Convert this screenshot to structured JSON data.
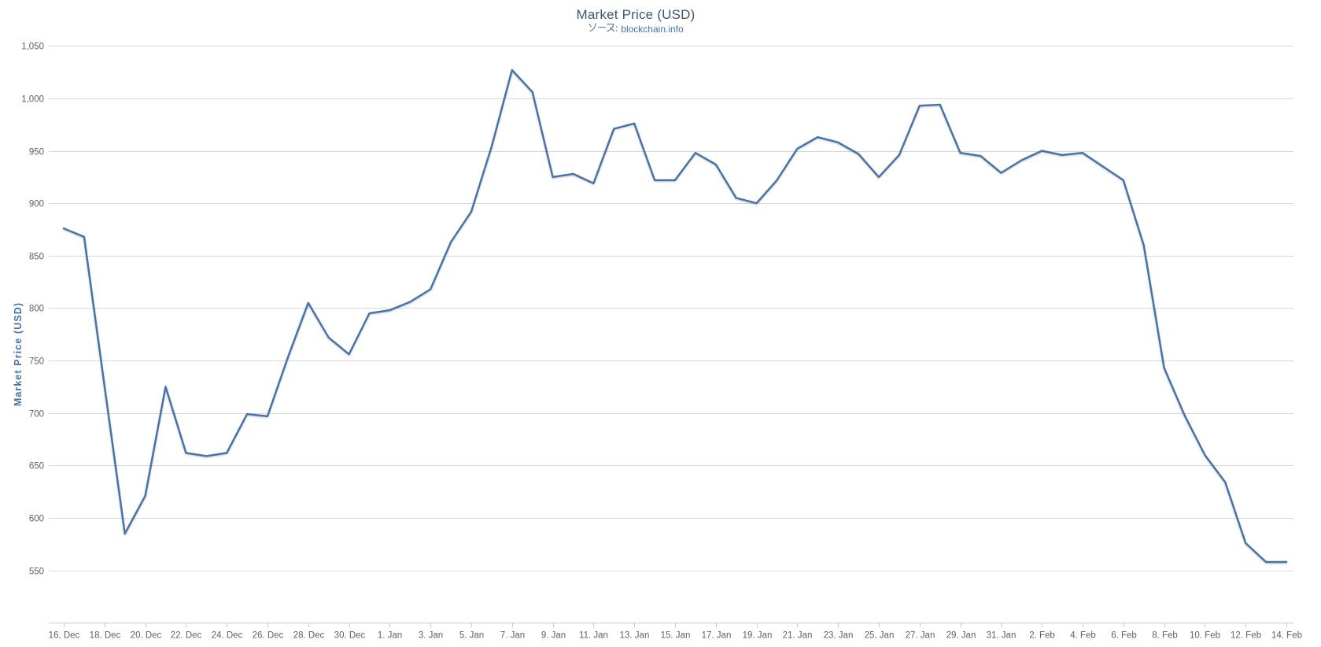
{
  "chart": {
    "title": "Market Price (USD)",
    "subtitle_prefix": "ソース:",
    "subtitle_link": "blockchain.info",
    "y_axis_title": "Market Price (USD)"
  },
  "colors": {
    "series": "#4572A7",
    "grid": "#D8D8D8",
    "axis_line": "#C0C8D2",
    "tick": "#C0C8D2",
    "axis_labels": "#606060",
    "title": "#3E576F",
    "subtitle": "#6D869F",
    "link": "#4572A7",
    "y_axis_title": "#4572A7",
    "background": "#FFFFFF"
  },
  "chart_data": {
    "type": "line",
    "title": "Market Price (USD)",
    "subtitle": "ソース: blockchain.info",
    "xlabel": "",
    "ylabel": "Market Price (USD)",
    "ylim": [
      500,
      1050
    ],
    "y_ticks": [
      550,
      600,
      650,
      700,
      750,
      800,
      850,
      900,
      950,
      1000,
      1050
    ],
    "grid": "horizontal",
    "legend": "none",
    "x_tick_labels": [
      "16. Dec",
      "18. Dec",
      "20. Dec",
      "22. Dec",
      "24. Dec",
      "26. Dec",
      "28. Dec",
      "30. Dec",
      "1. Jan",
      "3. Jan",
      "5. Jan",
      "7. Jan",
      "9. Jan",
      "11. Jan",
      "13. Jan",
      "15. Jan",
      "17. Jan",
      "19. Jan",
      "21. Jan",
      "23. Jan",
      "25. Jan",
      "27. Jan",
      "29. Jan",
      "31. Jan",
      "2. Feb",
      "4. Feb",
      "6. Feb",
      "8. Feb",
      "10. Feb",
      "12. Feb",
      "14. Feb"
    ],
    "x": [
      "16. Dec",
      "17. Dec",
      "18. Dec",
      "19. Dec",
      "20. Dec",
      "21. Dec",
      "22. Dec",
      "23. Dec",
      "24. Dec",
      "25. Dec",
      "26. Dec",
      "27. Dec",
      "28. Dec",
      "29. Dec",
      "30. Dec",
      "31. Dec",
      "1. Jan",
      "2. Jan",
      "3. Jan",
      "4. Jan",
      "5. Jan",
      "6. Jan",
      "7. Jan",
      "8. Jan",
      "9. Jan",
      "10. Jan",
      "11. Jan",
      "12. Jan",
      "13. Jan",
      "14. Jan",
      "15. Jan",
      "16. Jan",
      "17. Jan",
      "18. Jan",
      "19. Jan",
      "20. Jan",
      "21. Jan",
      "22. Jan",
      "23. Jan",
      "24. Jan",
      "25. Jan",
      "26. Jan",
      "27. Jan",
      "28. Jan",
      "29. Jan",
      "30. Jan",
      "31. Jan",
      "1. Feb",
      "2. Feb",
      "3. Feb",
      "4. Feb",
      "5. Feb",
      "6. Feb",
      "7. Feb",
      "8. Feb",
      "9. Feb",
      "10. Feb",
      "11. Feb",
      "12. Feb",
      "13. Feb",
      "14. Feb"
    ],
    "series": [
      {
        "name": "Market Price (USD)",
        "color": "#4572A7",
        "values": [
          876,
          868,
          726,
          585,
          621,
          725,
          662,
          659,
          662,
          699,
          697,
          753,
          805,
          772,
          756,
          795,
          798,
          806,
          818,
          863,
          892,
          954,
          1027,
          1006,
          925,
          928,
          919,
          971,
          976,
          922,
          922,
          948,
          937,
          905,
          900,
          922,
          952,
          963,
          958,
          947,
          925,
          946,
          993,
          994,
          948,
          945,
          929,
          941,
          950,
          946,
          948,
          935,
          922,
          860,
          743,
          698,
          660,
          634,
          576,
          558,
          558
        ]
      }
    ]
  }
}
